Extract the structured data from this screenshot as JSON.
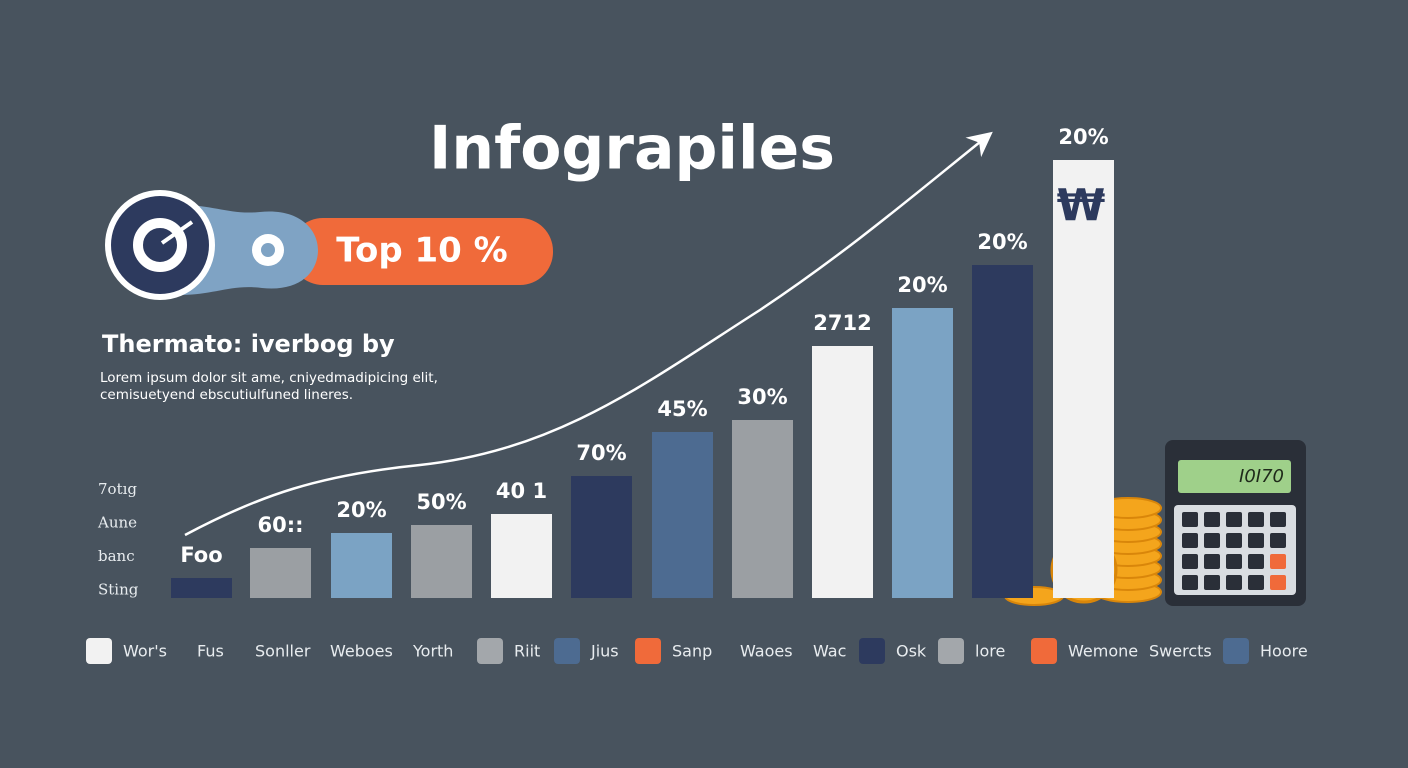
{
  "header": {
    "title": "Infograpiles"
  },
  "badge": {
    "label": "Top 10 %"
  },
  "heading": "Thermato: iverbog by",
  "description": [
    "Lorem ipsum dolor sit ame, cniyedmadipicing elit,",
    "cemisuetyend ebscutiulfuned lineres."
  ],
  "side_labels": [
    "7otıg",
    "Aune",
    "banc",
    "Sting"
  ],
  "bars": [
    {
      "label": "Foo"
    },
    {
      "label": "60::"
    },
    {
      "label": "20%"
    },
    {
      "label": "50%"
    },
    {
      "label": "40 1"
    },
    {
      "label": "70%"
    },
    {
      "label": "45%"
    },
    {
      "label": "30%"
    },
    {
      "label": "2712"
    },
    {
      "label": "20%"
    },
    {
      "label": "20%"
    },
    {
      "label": "20%"
    }
  ],
  "currency_symbol": "₩",
  "calculator_display": "I0I70",
  "legend": [
    {
      "label": "Wor's",
      "swatch": "#f2f2f2"
    },
    {
      "label": "Fus"
    },
    {
      "label": "Sonller"
    },
    {
      "label": "Weboes"
    },
    {
      "label": "Yorth"
    },
    {
      "label": "Riit",
      "swatch": "#a3a7ab"
    },
    {
      "label": "Jius",
      "swatch": "#4d6b91"
    },
    {
      "label": "Sanp",
      "swatch": "#f06a3a"
    },
    {
      "label": "Waoes"
    },
    {
      "label": "Wac"
    },
    {
      "label": "Osk",
      "swatch": "#2d3a5e"
    },
    {
      "label": "lore",
      "swatch": "#a3a7ab"
    },
    {
      "label": "Wemone",
      "swatch": "#f06a3a"
    },
    {
      "label": "Swercts"
    },
    {
      "label": "Hoore",
      "swatch": "#4d6b91"
    }
  ]
}
